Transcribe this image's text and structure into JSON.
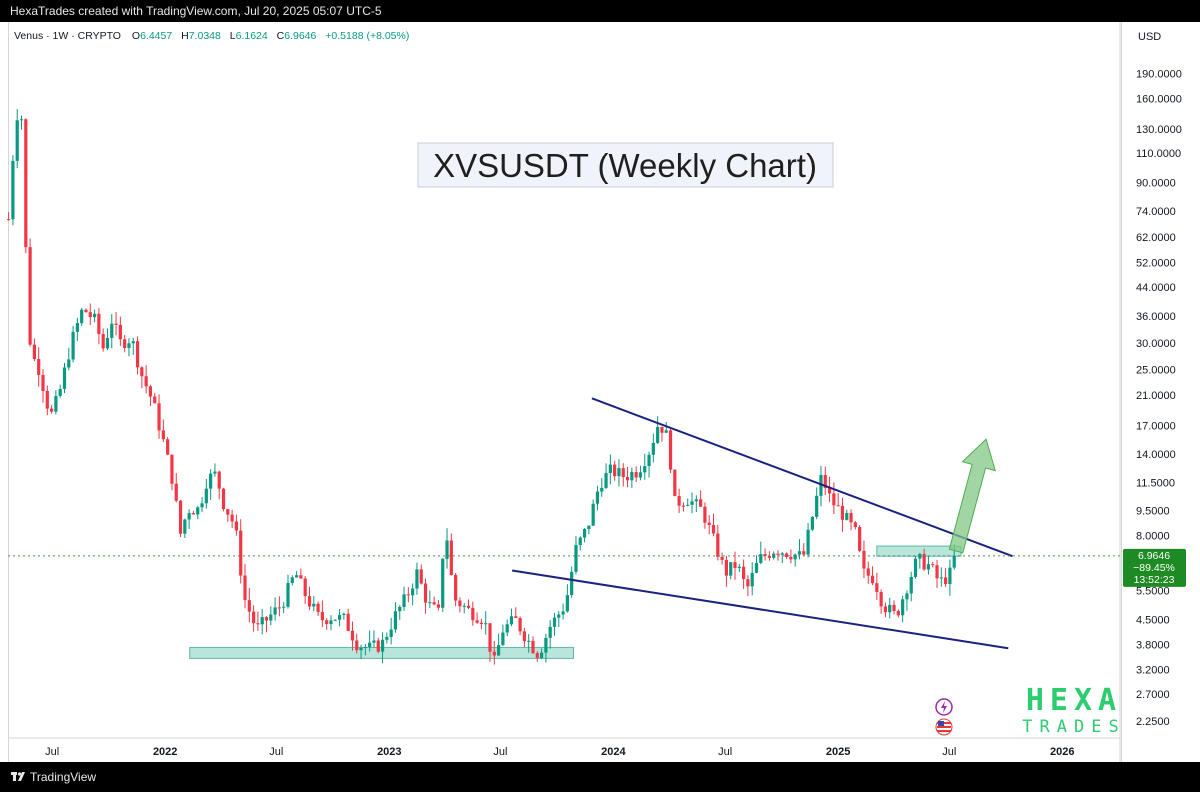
{
  "header": {
    "credit": "HexaTrades created with TradingView.com, Jul 20, 2025 05:07 UTC-5"
  },
  "legend": {
    "symbol": "Venus · 1W · CRYPTO",
    "o_label": "O",
    "o_value": "6.4457",
    "h_label": "H",
    "h_value": "7.0348",
    "l_label": "L",
    "l_value": "6.1624",
    "c_label": "C",
    "c_value": "6.9646",
    "change": "+0.5188 (+8.05%)"
  },
  "footer": {
    "brand": "TradingView"
  },
  "watermark": {
    "line1": "HEXA",
    "line2": "TRADES",
    "color": "#2ecc71"
  },
  "colors": {
    "up": "#089981",
    "down": "#f23645",
    "trendline": "#1a237e",
    "zone": "#7fd1c0",
    "arrow": "#81c784"
  },
  "chart_data": {
    "type": "candlestick",
    "title": "XVSUSDT (Weekly Chart)",
    "currency": "USD",
    "scale": "log",
    "ylim": [
      2.0,
      220.0
    ],
    "xlim": [
      "2021-04-20",
      "2026-04-05"
    ],
    "y_ticks": [
      "190.0000",
      "160.0000",
      "130.0000",
      "110.0000",
      "90.0000",
      "74.0000",
      "62.0000",
      "52.0000",
      "44.0000",
      "36.0000",
      "30.0000",
      "25.0000",
      "21.0000",
      "17.0000",
      "14.0000",
      "11.5000",
      "9.5000",
      "8.0000",
      "5.5000",
      "4.5000",
      "3.8000",
      "3.2000",
      "2.7000",
      "2.2500"
    ],
    "x_ticks": [
      {
        "label": "Jul",
        "date": "2021-07-01",
        "bold": false
      },
      {
        "label": "2022",
        "date": "2022-01-01",
        "bold": true
      },
      {
        "label": "Jul",
        "date": "2022-07-01",
        "bold": false
      },
      {
        "label": "2023",
        "date": "2023-01-01",
        "bold": true
      },
      {
        "label": "Jul",
        "date": "2023-07-01",
        "bold": false
      },
      {
        "label": "2024",
        "date": "2024-01-01",
        "bold": true
      },
      {
        "label": "Jul",
        "date": "2024-07-01",
        "bold": false
      },
      {
        "label": "2025",
        "date": "2025-01-01",
        "bold": true
      },
      {
        "label": "Jul",
        "date": "2025-07-01",
        "bold": false
      },
      {
        "label": "2026",
        "date": "2026-01-01",
        "bold": true
      }
    ],
    "last_price": {
      "value": 6.9646,
      "label": "6.9646",
      "change_label": "−89.45%",
      "countdown": "13:52:23",
      "color": "#1e8a23"
    },
    "trendlines": [
      {
        "name": "upper-trendline",
        "points": [
          [
            "2023-11-27",
            20.5
          ],
          [
            "2025-10-12",
            6.95
          ]
        ]
      },
      {
        "name": "lower-trendline",
        "points": [
          [
            "2023-07-20",
            6.3
          ],
          [
            "2025-10-05",
            3.7
          ]
        ]
      }
    ],
    "zones": [
      {
        "name": "support-zone",
        "x": [
          "2022-02-10",
          "2023-10-28"
        ],
        "y": [
          3.45,
          3.72
        ]
      },
      {
        "name": "resistance-zone",
        "x": [
          "2025-03-05",
          "2025-07-20"
        ],
        "y": [
          6.95,
          7.45
        ]
      }
    ],
    "arrow": {
      "from": [
        "2025-07-12",
        7.2
      ],
      "to": [
        "2025-08-30",
        15.5
      ]
    },
    "anchors": [
      [
        "2021-04-21",
        70
      ],
      [
        "2021-05-03",
        145
      ],
      [
        "2021-05-12",
        140
      ],
      [
        "2021-05-20",
        50
      ],
      [
        "2021-05-27",
        28
      ],
      [
        "2021-06-10",
        25
      ],
      [
        "2021-06-28",
        18
      ],
      [
        "2021-07-12",
        21
      ],
      [
        "2021-08-01",
        30
      ],
      [
        "2021-08-20",
        38
      ],
      [
        "2021-09-08",
        35
      ],
      [
        "2021-09-22",
        29
      ],
      [
        "2021-10-06",
        35
      ],
      [
        "2021-10-20",
        30
      ],
      [
        "2021-11-07",
        31
      ],
      [
        "2021-11-24",
        24
      ],
      [
        "2021-12-12",
        20
      ],
      [
        "2021-12-30",
        15
      ],
      [
        "2022-01-15",
        11.3
      ],
      [
        "2022-01-25",
        8.0
      ],
      [
        "2022-02-07",
        9.6
      ],
      [
        "2022-02-25",
        9.6
      ],
      [
        "2022-03-10",
        11.8
      ],
      [
        "2022-03-25",
        12.2
      ],
      [
        "2022-04-05",
        10.1
      ],
      [
        "2022-04-25",
        8.5
      ],
      [
        "2022-05-10",
        5.2
      ],
      [
        "2022-05-30",
        4.2
      ],
      [
        "2022-06-15",
        4.5
      ],
      [
        "2022-07-10",
        5.0
      ],
      [
        "2022-08-01",
        6.2
      ],
      [
        "2022-08-20",
        5.2
      ],
      [
        "2022-09-10",
        4.5
      ],
      [
        "2022-09-30",
        4.6
      ],
      [
        "2022-10-20",
        4.5
      ],
      [
        "2022-11-10",
        3.8
      ],
      [
        "2022-11-30",
        3.7
      ],
      [
        "2022-12-20",
        3.8
      ],
      [
        "2023-01-10",
        4.6
      ],
      [
        "2023-01-30",
        5.3
      ],
      [
        "2023-02-15",
        6.2
      ],
      [
        "2023-03-05",
        5.0
      ],
      [
        "2023-03-22",
        4.7
      ],
      [
        "2023-04-02",
        8.8
      ],
      [
        "2023-04-16",
        5.2
      ],
      [
        "2023-05-10",
        4.8
      ],
      [
        "2023-06-05",
        4.5
      ],
      [
        "2023-06-20",
        3.3
      ],
      [
        "2023-07-05",
        4.2
      ],
      [
        "2023-07-25",
        4.5
      ],
      [
        "2023-08-15",
        3.9
      ],
      [
        "2023-09-01",
        3.55
      ],
      [
        "2023-09-20",
        4.3
      ],
      [
        "2023-10-15",
        5.0
      ],
      [
        "2023-11-01",
        7.3
      ],
      [
        "2023-11-20",
        8.5
      ],
      [
        "2023-12-10",
        11.5
      ],
      [
        "2023-12-28",
        12.5
      ],
      [
        "2024-01-20",
        12.0
      ],
      [
        "2024-02-10",
        12.5
      ],
      [
        "2024-03-01",
        14.5
      ],
      [
        "2024-03-15",
        17.5
      ],
      [
        "2024-03-30",
        15.5
      ],
      [
        "2024-04-10",
        10.0
      ],
      [
        "2024-05-01",
        10.3
      ],
      [
        "2024-05-25",
        9.5
      ],
      [
        "2024-06-15",
        7.5
      ],
      [
        "2024-07-01",
        6.2
      ],
      [
        "2024-07-20",
        6.6
      ],
      [
        "2024-08-05",
        5.5
      ],
      [
        "2024-08-25",
        6.8
      ],
      [
        "2024-09-20",
        7.3
      ],
      [
        "2024-10-15",
        7.1
      ],
      [
        "2024-11-05",
        6.9
      ],
      [
        "2024-11-25",
        10.0
      ],
      [
        "2024-12-05",
        12.0
      ],
      [
        "2024-12-20",
        10.2
      ],
      [
        "2025-01-10",
        9.2
      ],
      [
        "2025-01-30",
        8.1
      ],
      [
        "2025-02-10",
        6.2
      ],
      [
        "2025-02-28",
        6.0
      ],
      [
        "2025-03-15",
        5.0
      ],
      [
        "2025-04-05",
        4.6
      ],
      [
        "2025-04-25",
        5.8
      ],
      [
        "2025-05-10",
        6.8
      ],
      [
        "2025-05-30",
        6.5
      ],
      [
        "2025-06-15",
        5.8
      ],
      [
        "2025-07-01",
        6.1
      ],
      [
        "2025-07-14",
        6.96
      ]
    ]
  }
}
